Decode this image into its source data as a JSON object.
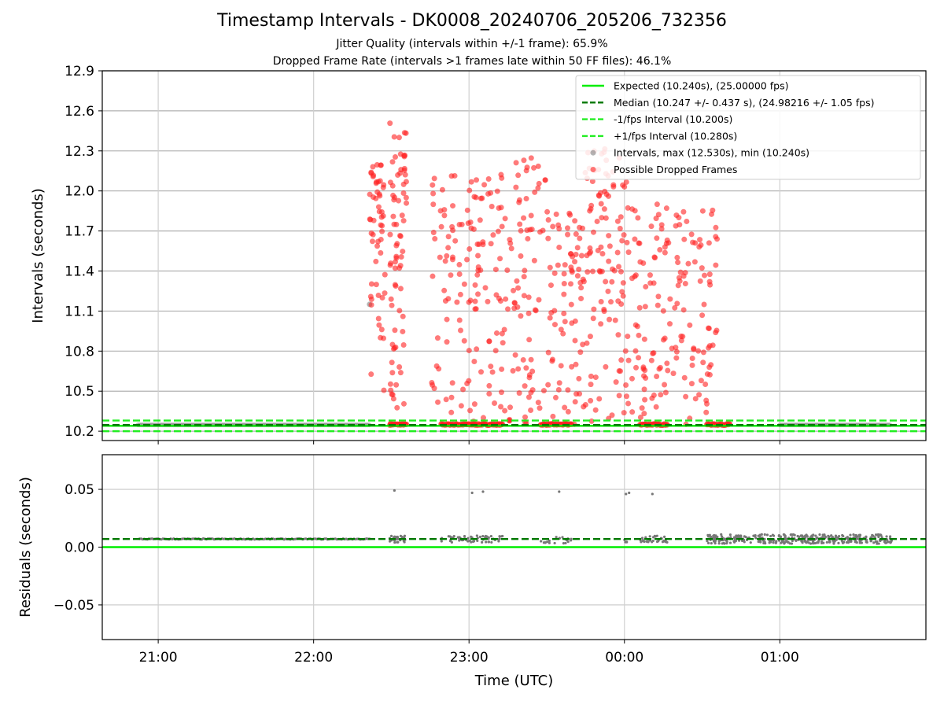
{
  "title": "Timestamp Intervals - DK0008_20240706_205206_732356",
  "subtitle_1": "Jitter Quality (intervals within +/-1 frame): 65.9%",
  "subtitle_2": "Dropped Frame Rate (intervals >1 frames late within 50 FF files): 46.1%",
  "colors": {
    "expected": "#00ee00",
    "median": "#007700",
    "fps_band": "#22ee22",
    "intervals": "#808080",
    "dropped": "#ff2222",
    "residual_points": "#777777"
  },
  "chart_data": [
    {
      "type": "scatter",
      "panel": "intervals",
      "ylabel": "Intervals (seconds)",
      "xlabel": "",
      "ylim": [
        10.13,
        12.9
      ],
      "yticks": [
        "10.2",
        "10.5",
        "10.8",
        "11.1",
        "11.4",
        "11.7",
        "12.0",
        "12.3",
        "12.6",
        "12.9"
      ],
      "ytick_values": [
        10.2,
        10.5,
        10.8,
        11.1,
        11.4,
        11.7,
        12.0,
        12.3,
        12.6,
        12.9
      ],
      "xlim_hours": [
        20.64,
        25.94
      ],
      "grid": true,
      "legend_position": "top-right",
      "reference_lines": [
        {
          "name": "Expected (10.240s), (25.00000 fps)",
          "value": 10.24,
          "style": "solid",
          "color": "#00ee00"
        },
        {
          "name": "Median (10.247 +/- 0.437 s), (24.98216 +/- 1.05 fps)",
          "value": 10.247,
          "style": "dashed",
          "color": "#007700"
        },
        {
          "name": "-1/fps Interval (10.200s)",
          "value": 10.2,
          "style": "dashed",
          "color": "#22ee22"
        },
        {
          "name": "+1/fps Interval (10.280s)",
          "value": 10.28,
          "style": "dashed",
          "color": "#22ee22"
        }
      ],
      "series": [
        {
          "name": "Intervals, max (12.530s), min (10.240s)",
          "color": "#808080",
          "baseline_ranges_hours": [
            [
              20.87,
              22.37
            ],
            [
              25.0,
              25.72
            ]
          ],
          "baseline_value": 10.247,
          "extra_points": [
            [
              22.36,
              11.15
            ]
          ]
        },
        {
          "name": "Possible Dropped Frames",
          "color": "#ff2222",
          "clusters": [
            {
              "x_range": [
                22.36,
                22.46
              ],
              "y_range": [
                10.5,
                12.26
              ],
              "n": 55
            },
            {
              "x_range": [
                22.49,
                22.6
              ],
              "y_range": [
                10.25,
                12.52
              ],
              "n": 75
            },
            {
              "x_range": [
                22.76,
                23.2
              ],
              "y_range": [
                10.25,
                12.12
              ],
              "n": 120
            },
            {
              "x_range": [
                23.2,
                23.5
              ],
              "y_range": [
                10.25,
                12.28
              ],
              "n": 90
            },
            {
              "x_range": [
                23.5,
                23.72
              ],
              "y_range": [
                10.25,
                11.9
              ],
              "n": 70
            },
            {
              "x_range": [
                23.72,
                24.02
              ],
              "y_range": [
                10.25,
                12.33
              ],
              "n": 110
            },
            {
              "x_range": [
                24.02,
                24.28
              ],
              "y_range": [
                10.25,
                11.9
              ],
              "n": 75
            },
            {
              "x_range": [
                24.28,
                24.6
              ],
              "y_range": [
                10.25,
                11.88
              ],
              "n": 85
            }
          ],
          "flat_ranges_hours": [
            [
              22.49,
              22.6
            ],
            [
              22.82,
              23.22
            ],
            [
              23.46,
              23.66
            ],
            [
              24.1,
              24.28
            ],
            [
              24.53,
              24.68
            ]
          ],
          "flat_value": 10.25
        }
      ]
    },
    {
      "type": "scatter",
      "panel": "residuals",
      "ylabel": "Residuals (seconds)",
      "xlabel": "Time (UTC)",
      "ylim": [
        -0.08,
        0.08
      ],
      "yticks": [
        "0.05",
        "0.00",
        "−0.05"
      ],
      "ytick_values": [
        0.05,
        0.0,
        -0.05
      ],
      "xlim_hours": [
        20.64,
        25.94
      ],
      "xticks": [
        "21:00",
        "22:00",
        "23:00",
        "00:00",
        "01:00"
      ],
      "xtick_values_hours": [
        21,
        22,
        23,
        24,
        25
      ],
      "grid": true,
      "reference_lines": [
        {
          "name": "Expected",
          "value": 0.0,
          "style": "solid",
          "color": "#00ee00"
        },
        {
          "name": "Median",
          "value": 0.007,
          "style": "dashed",
          "color": "#007700"
        }
      ],
      "baseline_ranges_hours": [
        [
          20.88,
          22.37
        ]
      ],
      "baseline_value": 0.007,
      "clusters": [
        {
          "x_range": [
            22.49,
            22.6
          ],
          "center": 0.007,
          "spread": 0.003,
          "n": 30
        },
        {
          "x_range": [
            22.82,
            23.22
          ],
          "center": 0.007,
          "spread": 0.003,
          "n": 60
        },
        {
          "x_range": [
            23.46,
            23.66
          ],
          "center": 0.006,
          "spread": 0.003,
          "n": 20
        },
        {
          "x_range": [
            24.0,
            24.03
          ],
          "center": 0.006,
          "spread": 0.002,
          "n": 4
        },
        {
          "x_range": [
            24.1,
            24.28
          ],
          "center": 0.007,
          "spread": 0.003,
          "n": 30
        },
        {
          "x_range": [
            24.53,
            25.72
          ],
          "center": 0.007,
          "spread": 0.004,
          "n": 360
        }
      ],
      "outliers": [
        [
          22.52,
          0.049
        ],
        [
          23.02,
          0.047
        ],
        [
          23.09,
          0.048
        ],
        [
          23.58,
          0.048
        ],
        [
          24.01,
          0.046
        ],
        [
          24.03,
          0.047
        ],
        [
          24.18,
          0.046
        ]
      ]
    }
  ]
}
